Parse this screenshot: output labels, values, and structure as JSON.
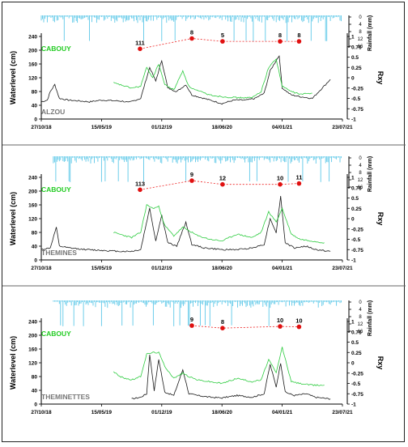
{
  "chart_data": [
    {
      "type": "line",
      "station_label": "ALZOU",
      "source_label": "CABOUY",
      "ylabel": "Waterlevel (cm)",
      "y2label": "Rxy",
      "rain_label": "Rainfall (mm)",
      "x_ticks": [
        "27/10/18",
        "15/05/19",
        "01/12/19",
        "18/06/20",
        "04/01/21",
        "23/07/21"
      ],
      "x_range": [
        "2018-10-27",
        "2021-07-23"
      ],
      "ylim": [
        0,
        240
      ],
      "y_ticks": [
        0,
        40,
        80,
        120,
        160,
        200,
        240
      ],
      "y2lim": [
        -1,
        1
      ],
      "y2_ticks": [
        "1",
        "0.75",
        "0.5",
        "0.25",
        "0",
        "-0.25",
        "-0.5",
        "-0.75",
        "-1"
      ],
      "rain_ticks": [
        "0",
        "4",
        "8",
        "12",
        "16"
      ],
      "lag_points": [
        {
          "date": "2019-09-20",
          "rxy": 0.7,
          "label": "111"
        },
        {
          "date": "2020-03-10",
          "rxy": 0.95,
          "label": "8"
        },
        {
          "date": "2020-06-20",
          "rxy": 0.88,
          "label": "5"
        },
        {
          "date": "2020-12-28",
          "rxy": 0.88,
          "label": "8"
        },
        {
          "date": "2021-03-01",
          "rxy": 0.88,
          "label": "8"
        }
      ],
      "series": [
        {
          "values": [
            [
              0,
              50
            ],
            [
              20,
              55
            ],
            [
              30,
              80
            ],
            [
              45,
              100
            ],
            [
              60,
              60
            ],
            [
              90,
              55
            ],
            [
              120,
              53
            ],
            [
              160,
              50
            ],
            [
              200,
              55
            ],
            [
              270,
              52
            ],
            [
              290,
              48
            ],
            [
              330,
              60
            ],
            [
              360,
              150
            ],
            [
              380,
              110
            ],
            [
              400,
              170
            ],
            [
              420,
              90
            ],
            [
              450,
              80
            ],
            [
              480,
              100
            ],
            [
              500,
              70
            ],
            [
              540,
              60
            ],
            [
              600,
              45
            ],
            [
              640,
              55
            ],
            [
              680,
              55
            ],
            [
              710,
              60
            ],
            [
              740,
              75
            ],
            [
              760,
              140
            ],
            [
              790,
              185
            ],
            [
              800,
              90
            ],
            [
              830,
              70
            ],
            [
              860,
              65
            ],
            [
              900,
              60
            ],
            [
              960,
              115
            ]
          ]
        },
        {
          "values": [
            [
              240,
              105
            ],
            [
              260,
              100
            ],
            [
              300,
              90
            ],
            [
              330,
              95
            ],
            [
              350,
              150
            ],
            [
              370,
              120
            ],
            [
              390,
              160
            ],
            [
              410,
              100
            ],
            [
              440,
              85
            ],
            [
              470,
              140
            ],
            [
              490,
              95
            ],
            [
              510,
              85
            ],
            [
              560,
              70
            ],
            [
              600,
              65
            ],
            [
              650,
              62
            ],
            [
              700,
              62
            ],
            [
              730,
              80
            ],
            [
              755,
              150
            ],
            [
              780,
              175
            ],
            [
              800,
              95
            ],
            [
              830,
              80
            ],
            [
              860,
              72
            ],
            [
              900,
              75
            ]
          ]
        }
      ]
    },
    {
      "type": "line",
      "station_label": "THEMINES",
      "source_label": "CABOUY",
      "ylabel": "Waterlevel (cm)",
      "y2label": "Rxy",
      "rain_label": "Rainfall (mm)",
      "x_ticks": [
        "27/10/18",
        "15/05/19",
        "01/12/19",
        "18/06/20",
        "04/01/21",
        "23/07/21"
      ],
      "x_range": [
        "2018-10-27",
        "2021-07-23"
      ],
      "ylim": [
        0,
        240
      ],
      "y_ticks": [
        0,
        40,
        80,
        120,
        160,
        200,
        240
      ],
      "y2lim": [
        -1,
        1
      ],
      "y2_ticks": [
        "1",
        "0.75",
        "0.5",
        "0.25",
        "0",
        "-0.25",
        "-0.5",
        "-0.75",
        "-1"
      ],
      "rain_ticks": [
        "0",
        "4",
        "8",
        "12",
        "16"
      ],
      "lag_points": [
        {
          "date": "2019-09-20",
          "rxy": 0.7,
          "label": "113"
        },
        {
          "date": "2020-03-10",
          "rxy": 0.92,
          "label": "9"
        },
        {
          "date": "2020-06-20",
          "rxy": 0.83,
          "label": "12"
        },
        {
          "date": "2020-12-28",
          "rxy": 0.83,
          "label": "10"
        },
        {
          "date": "2021-03-01",
          "rxy": 0.85,
          "label": "11"
        }
      ],
      "series": [
        {
          "values": [
            [
              0,
              30
            ],
            [
              30,
              35
            ],
            [
              50,
              95
            ],
            [
              60,
              40
            ],
            [
              90,
              35
            ],
            [
              150,
              30
            ],
            [
              200,
              28
            ],
            [
              260,
              25
            ],
            [
              300,
              25
            ],
            [
              330,
              30
            ],
            [
              360,
              150
            ],
            [
              380,
              55
            ],
            [
              400,
              130
            ],
            [
              420,
              50
            ],
            [
              450,
              40
            ],
            [
              480,
              110
            ],
            [
              500,
              45
            ],
            [
              540,
              35
            ],
            [
              600,
              30
            ],
            [
              650,
              30
            ],
            [
              700,
              35
            ],
            [
              740,
              45
            ],
            [
              760,
              120
            ],
            [
              780,
              80
            ],
            [
              795,
              185
            ],
            [
              810,
              50
            ],
            [
              840,
              35
            ],
            [
              880,
              40
            ],
            [
              910,
              30
            ],
            [
              960,
              25
            ]
          ]
        },
        {
          "values": [
            [
              240,
              80
            ],
            [
              260,
              75
            ],
            [
              300,
              65
            ],
            [
              330,
              80
            ],
            [
              350,
              160
            ],
            [
              370,
              150
            ],
            [
              390,
              155
            ],
            [
              410,
              100
            ],
            [
              440,
              70
            ],
            [
              470,
              95
            ],
            [
              490,
              85
            ],
            [
              520,
              70
            ],
            [
              560,
              60
            ],
            [
              600,
              55
            ],
            [
              650,
              75
            ],
            [
              700,
              65
            ],
            [
              730,
              80
            ],
            [
              755,
              140
            ],
            [
              780,
              110
            ],
            [
              800,
              150
            ],
            [
              830,
              75
            ],
            [
              860,
              60
            ],
            [
              900,
              55
            ],
            [
              940,
              50
            ]
          ]
        }
      ]
    },
    {
      "type": "line",
      "station_label": "THEMINETTES",
      "source_label": "CABOUY",
      "ylabel": "Waterlevel (cm)",
      "y2label": "Rxy",
      "rain_label": "Rainfall (mm)",
      "x_ticks": [
        "27/10/18",
        "15/05/19",
        "01/12/19",
        "18/06/20",
        "04/01/21",
        "23/07/21"
      ],
      "x_range": [
        "2018-10-27",
        "2021-07-23"
      ],
      "ylim": [
        0,
        240
      ],
      "y_ticks": [
        0,
        40,
        80,
        120,
        160,
        200,
        240
      ],
      "y2lim": [
        -1,
        1
      ],
      "y2_ticks": [
        "1",
        "0.75",
        "0.5",
        "0.25",
        "0",
        "-0.25",
        "-0.5",
        "-0.75",
        "-1"
      ],
      "rain_ticks": [
        "0",
        "4",
        "8",
        "12",
        "16"
      ],
      "lag_points": [
        {
          "date": "2020-03-10",
          "rxy": 0.9,
          "label": "9"
        },
        {
          "date": "2020-06-20",
          "rxy": 0.84,
          "label": "8"
        },
        {
          "date": "2020-12-28",
          "rxy": 0.88,
          "label": "10"
        },
        {
          "date": "2021-03-01",
          "rxy": 0.87,
          "label": "10"
        }
      ],
      "series": [
        {
          "values": [
            [
              300,
              15
            ],
            [
              330,
              20
            ],
            [
              350,
              30
            ],
            [
              360,
              145
            ],
            [
              375,
              40
            ],
            [
              390,
              130
            ],
            [
              410,
              35
            ],
            [
              440,
              25
            ],
            [
              470,
              100
            ],
            [
              490,
              30
            ],
            [
              520,
              25
            ],
            [
              560,
              20
            ],
            [
              600,
              18
            ],
            [
              650,
              25
            ],
            [
              700,
              20
            ],
            [
              740,
              30
            ],
            [
              760,
              115
            ],
            [
              780,
              50
            ],
            [
              795,
              120
            ],
            [
              810,
              35
            ],
            [
              840,
              25
            ],
            [
              880,
              30
            ],
            [
              910,
              20
            ],
            [
              960,
              15
            ]
          ]
        },
        {
          "values": [
            [
              240,
              95
            ],
            [
              260,
              80
            ],
            [
              300,
              70
            ],
            [
              330,
              80
            ],
            [
              350,
              145
            ],
            [
              370,
              150
            ],
            [
              390,
              150
            ],
            [
              410,
              110
            ],
            [
              440,
              75
            ],
            [
              470,
              90
            ],
            [
              490,
              80
            ],
            [
              520,
              70
            ],
            [
              560,
              65
            ],
            [
              600,
              60
            ],
            [
              650,
              75
            ],
            [
              700,
              65
            ],
            [
              730,
              70
            ],
            [
              755,
              130
            ],
            [
              780,
              90
            ],
            [
              800,
              165
            ],
            [
              830,
              65
            ],
            [
              860,
              60
            ],
            [
              900,
              55
            ],
            [
              940,
              55
            ]
          ]
        }
      ]
    }
  ]
}
